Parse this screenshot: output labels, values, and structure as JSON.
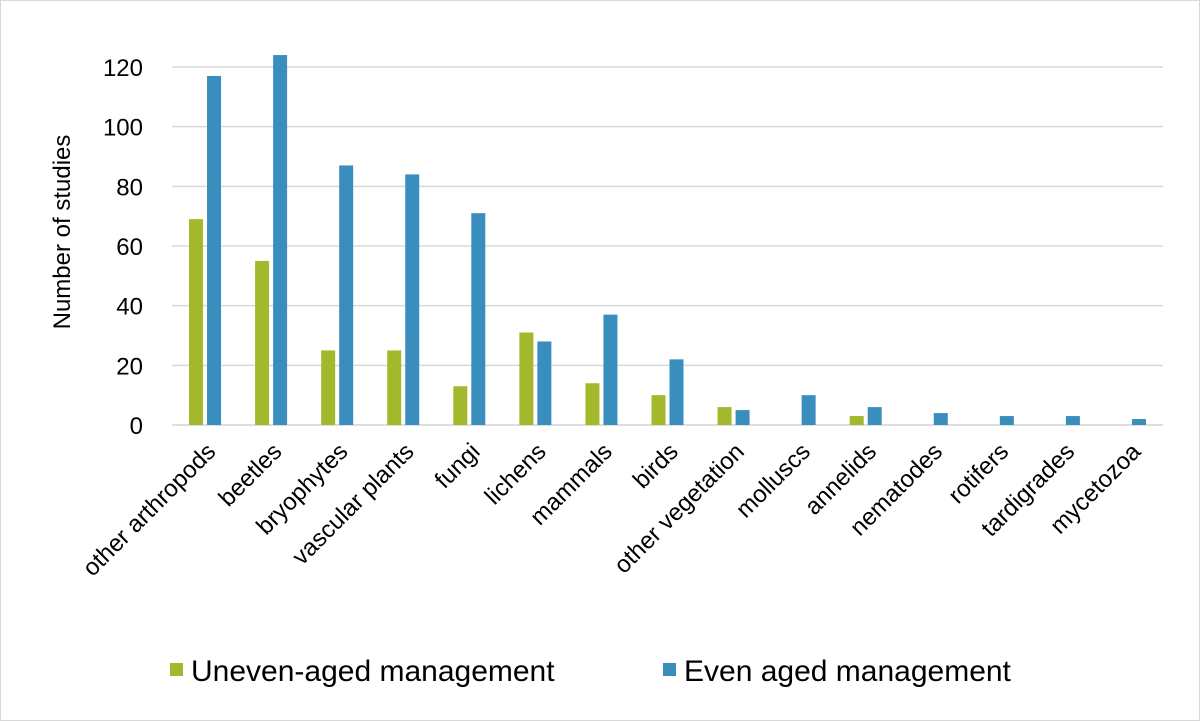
{
  "chart_data": {
    "type": "bar",
    "ylabel": "Number of studies",
    "xlabel": "",
    "ylim": [
      0,
      120
    ],
    "yticks": [
      0,
      20,
      40,
      60,
      80,
      100,
      120
    ],
    "grid": true,
    "legend_position": "bottom",
    "categories": [
      "other arthropods",
      "beetles",
      "bryophytes",
      "vascular plants",
      "fungi",
      "lichens",
      "mammals",
      "birds",
      "other vegetation",
      "molluscs",
      "annelids",
      "nematodes",
      "rotifers",
      "tardigrades",
      "mycetozoa"
    ],
    "series": [
      {
        "name": "Uneven-aged management",
        "color": "#a4b82c",
        "values": [
          69,
          55,
          25,
          25,
          13,
          31,
          14,
          10,
          6,
          0,
          3,
          0,
          0,
          0,
          0
        ]
      },
      {
        "name": "Even aged management",
        "color": "#3a8ebd",
        "values": [
          117,
          124,
          87,
          84,
          71,
          28,
          37,
          22,
          5,
          10,
          6,
          4,
          3,
          3,
          2
        ]
      }
    ]
  }
}
